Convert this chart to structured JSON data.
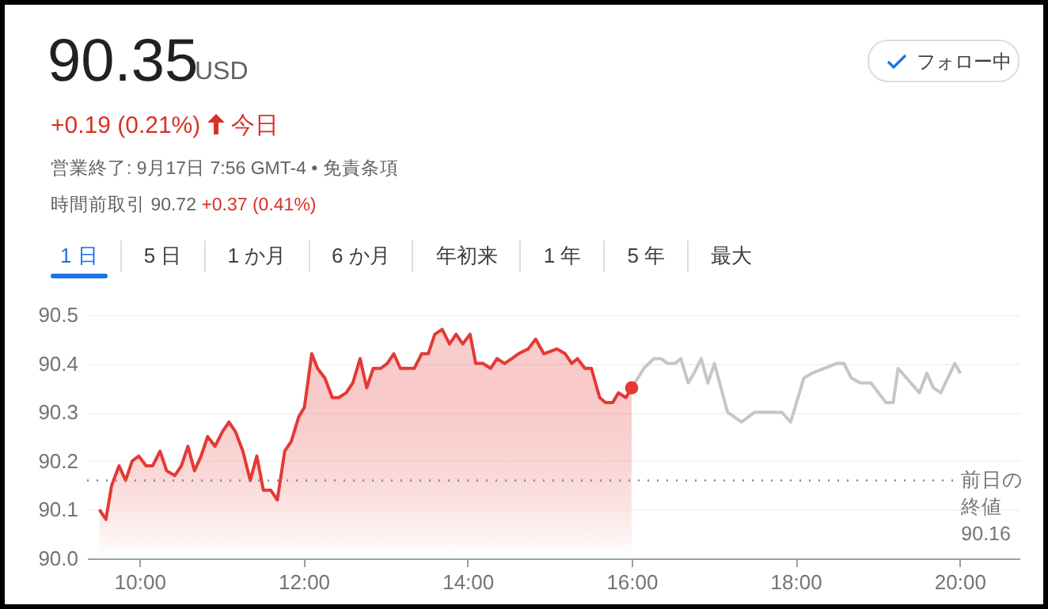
{
  "chart_data": {
    "type": "line",
    "title": "90.35",
    "subtitle": "USD",
    "annotations": [
      "+0.19 (0.21%)",
      "今日",
      "営業終了: 9月17日 7:56 GMT-4 • 免責条項",
      "時間前取引 90.72",
      "+0.37 (0.41%)",
      "フォロー中",
      "1 日",
      "5 日",
      "1 か月",
      "6 か月",
      "年初来",
      "1 年",
      "5 年",
      "最大"
    ],
    "xlim": [
      9.36,
      20.73
    ],
    "xticks": [
      {
        "value": 10,
        "label": "10:00"
      },
      {
        "value": 12,
        "label": "12:00"
      },
      {
        "value": 14,
        "label": "14:00"
      },
      {
        "value": 16,
        "label": "16:00"
      },
      {
        "value": 18,
        "label": "18:00"
      },
      {
        "value": 20,
        "label": "20:00"
      }
    ],
    "ylim": [
      90.0,
      90.5
    ],
    "yticks": [
      {
        "value": 90,
        "label": "90.0"
      },
      90.1,
      90.2,
      90.3,
      90.4,
      90.5
    ],
    "grid": "y",
    "ref_lines": [
      {
        "axis": "y",
        "value": 90.16,
        "label": "前日の終値\n90.16",
        "color": "#80868b",
        "line_style": "dotted"
      }
    ],
    "series": [
      {
        "type": "area",
        "color": "#e53935",
        "x": [
          9.51,
          9.59,
          9.66,
          9.75,
          9.83,
          9.91,
          9.99,
          10.08,
          10.16,
          10.25,
          10.33,
          10.43,
          10.51,
          10.59,
          10.67,
          10.75,
          10.83,
          10.92,
          11.01,
          11.09,
          11.17,
          11.26,
          11.35,
          11.43,
          11.51,
          11.6,
          11.68,
          11.77,
          11.85,
          11.94,
          12.01,
          12.1,
          12.17,
          12.26,
          12.35,
          12.43,
          12.52,
          12.6,
          12.69,
          12.77,
          12.85,
          12.94,
          13.02,
          13.1,
          13.18,
          13.27,
          13.35,
          13.44,
          13.52,
          13.6,
          13.69,
          13.78,
          13.86,
          13.94,
          14.03,
          14.1,
          14.19,
          14.28,
          14.36,
          14.45,
          14.54,
          14.62,
          14.74,
          14.83,
          14.93,
          15.09,
          15.19,
          15.27,
          15.34,
          15.43,
          15.51,
          15.61,
          15.68,
          15.77,
          15.84,
          15.93,
          16.0
        ],
        "values": [
          90.1,
          90.08,
          90.15,
          90.19,
          90.16,
          90.2,
          90.21,
          90.19,
          90.19,
          90.22,
          90.18,
          90.17,
          90.19,
          90.23,
          90.18,
          90.21,
          90.25,
          90.23,
          90.26,
          90.28,
          90.26,
          90.22,
          90.16,
          90.21,
          90.14,
          90.14,
          90.12,
          90.22,
          90.24,
          90.29,
          90.31,
          90.42,
          90.39,
          90.37,
          90.33,
          90.33,
          90.34,
          90.36,
          90.41,
          90.35,
          90.39,
          90.39,
          90.4,
          90.42,
          90.39,
          90.39,
          90.39,
          90.42,
          90.42,
          90.46,
          90.47,
          90.44,
          90.46,
          90.44,
          90.46,
          90.4,
          90.4,
          90.39,
          90.41,
          90.4,
          90.41,
          90.42,
          90.43,
          90.45,
          90.42,
          90.43,
          90.42,
          90.4,
          90.41,
          90.39,
          90.39,
          90.33,
          90.32,
          90.32,
          90.34,
          90.33,
          90.35
        ]
      },
      {
        "color": "#c6c6c6",
        "x": [
          16.0,
          16.15,
          16.27,
          16.36,
          16.44,
          16.53,
          16.6,
          16.69,
          16.76,
          16.85,
          16.93,
          17.01,
          17.17,
          17.34,
          17.5,
          17.83,
          17.94,
          18.1,
          18.2,
          18.5,
          18.59,
          18.68,
          18.79,
          18.92,
          19.1,
          19.19,
          19.25,
          19.51,
          19.6,
          19.68,
          19.77,
          19.94,
          20.01
        ],
        "values": [
          90.35,
          90.39,
          90.41,
          90.41,
          90.4,
          90.4,
          90.41,
          90.36,
          90.38,
          90.41,
          90.36,
          90.4,
          90.3,
          90.28,
          90.3,
          90.3,
          90.28,
          90.37,
          90.38,
          90.4,
          90.4,
          90.37,
          90.36,
          90.36,
          90.32,
          90.32,
          90.39,
          90.34,
          90.38,
          90.35,
          90.34,
          90.4,
          90.38
        ]
      },
      {
        "type": "scatter",
        "color": "#e53935",
        "marker": "circle",
        "x": [
          16.0
        ],
        "values": [
          90.35
        ]
      }
    ]
  }
}
